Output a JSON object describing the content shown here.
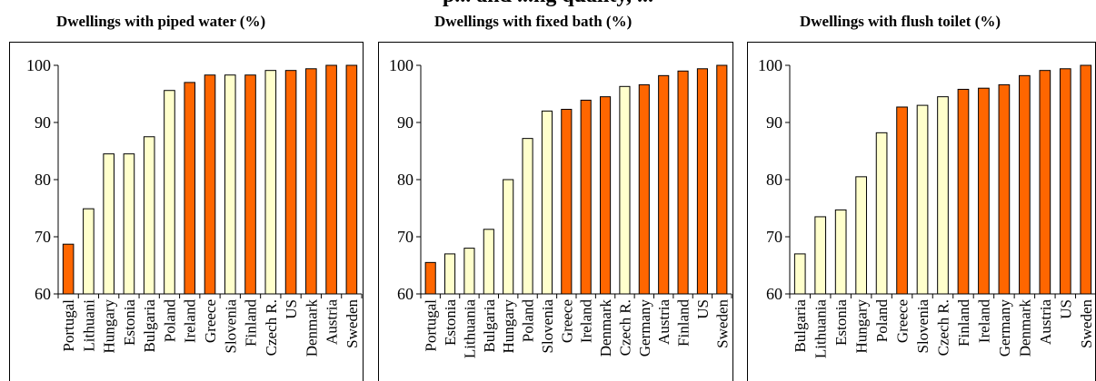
{
  "page_title": "p... and ...ng quality, ...",
  "colors": {
    "highlight": "#FF6600",
    "other": "#FFFFCC",
    "outline": "#000000"
  },
  "chart_data": [
    {
      "type": "bar",
      "title": "Dwellings with piped water (%)",
      "categories": [
        "Portugal",
        "Lithuani",
        "Hungary",
        "Estonia",
        "Bulgaria",
        "Poland",
        "Ireland",
        "Greece",
        "Slovenia",
        "Finland",
        "Czech R.",
        "US",
        "Denmark",
        "Austria",
        "Sweden"
      ],
      "values": [
        68.7,
        74.9,
        84.5,
        84.5,
        87.5,
        95.6,
        97.0,
        98.3,
        98.3,
        98.3,
        99.1,
        99.1,
        99.4,
        100,
        100
      ],
      "highlight": [
        true,
        false,
        false,
        false,
        false,
        false,
        true,
        true,
        false,
        true,
        false,
        true,
        true,
        true,
        true
      ],
      "ylim": [
        60,
        100
      ],
      "yticks": [
        60,
        70,
        80,
        90,
        100
      ],
      "xlabel": "",
      "ylabel": ""
    },
    {
      "type": "bar",
      "title": "Dwellings with fixed bath (%)",
      "categories": [
        "Portugal",
        "Estonia",
        "Lithuania",
        "Bulgaria",
        "Hungary",
        "Poland",
        "Slovenia",
        "Greece",
        "Ireland",
        "Denmark",
        "Czech R.",
        "Germany",
        "Austria",
        "Finland",
        "US",
        "Sweden"
      ],
      "values": [
        65.5,
        67.0,
        68.0,
        71.3,
        80.0,
        87.2,
        92.0,
        92.3,
        93.9,
        94.5,
        96.3,
        96.6,
        98.2,
        99.0,
        99.4,
        100
      ],
      "highlight": [
        true,
        false,
        false,
        false,
        false,
        false,
        false,
        true,
        true,
        true,
        false,
        true,
        true,
        true,
        true,
        true
      ],
      "ylim": [
        60,
        100
      ],
      "yticks": [
        60,
        70,
        80,
        90,
        100
      ],
      "xlabel": "",
      "ylabel": ""
    },
    {
      "type": "bar",
      "title": "Dwellings with flush toilet (%)",
      "categories": [
        "Bulgaria",
        "Lithuania",
        "Estonia",
        "Hungary",
        "Poland",
        "Greece",
        "Slovenia",
        "Czech R.",
        "Finland",
        "Ireland",
        "Germany",
        "Denmark",
        "Austria",
        "US",
        "Sweden"
      ],
      "values": [
        67.0,
        73.5,
        74.7,
        80.5,
        88.2,
        92.7,
        93.0,
        94.5,
        95.8,
        96.0,
        96.6,
        98.2,
        99.1,
        99.4,
        100
      ],
      "highlight": [
        false,
        false,
        false,
        false,
        false,
        true,
        false,
        false,
        true,
        true,
        true,
        true,
        true,
        true,
        true
      ],
      "ylim": [
        60,
        100
      ],
      "yticks": [
        60,
        70,
        80,
        90,
        100
      ],
      "xlabel": "",
      "ylabel": ""
    }
  ]
}
